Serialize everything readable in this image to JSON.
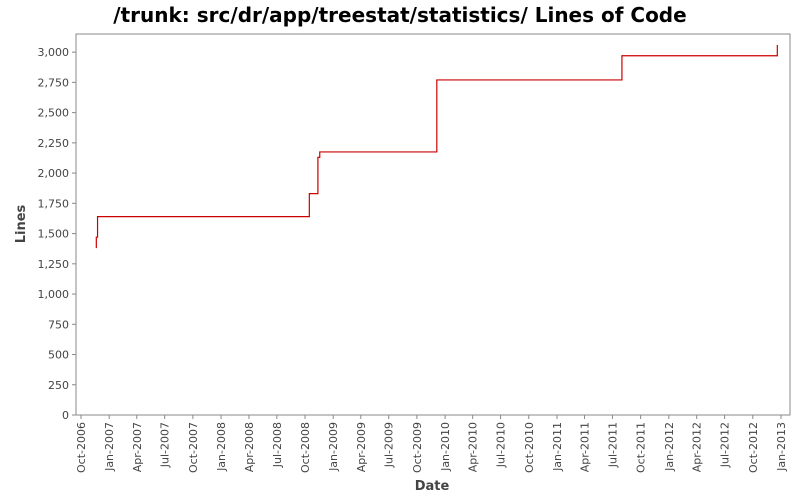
{
  "chart_data": {
    "type": "line",
    "title": "/trunk: src/dr/app/treestat/statistics/ Lines of Code",
    "xlabel": "Date",
    "ylabel": "Lines",
    "xlim": [
      "2006-10-01",
      "2013-01-01"
    ],
    "ylim": [
      0,
      3150
    ],
    "yticks": [
      0,
      250,
      500,
      750,
      1000,
      1250,
      1500,
      1750,
      2000,
      2250,
      2500,
      2750,
      3000
    ],
    "ytick_labels": [
      "0",
      "250",
      "500",
      "750",
      "1,000",
      "1,250",
      "1,500",
      "1,750",
      "2,000",
      "2,250",
      "2,500",
      "2,750",
      "3,000"
    ],
    "xticks": [
      "2006-10-01",
      "2007-01-01",
      "2007-04-01",
      "2007-07-01",
      "2007-10-01",
      "2008-01-01",
      "2008-04-01",
      "2008-07-01",
      "2008-10-01",
      "2009-01-01",
      "2009-04-01",
      "2009-07-01",
      "2009-10-01",
      "2010-01-01",
      "2010-04-01",
      "2010-07-01",
      "2010-10-01",
      "2011-01-01",
      "2011-04-01",
      "2011-07-01",
      "2011-10-01",
      "2012-01-01",
      "2012-04-01",
      "2012-07-01",
      "2012-10-01",
      "2013-01-01"
    ],
    "xtick_labels": [
      "Oct-2006",
      "Jan-2007",
      "Apr-2007",
      "Jul-2007",
      "Oct-2007",
      "Jan-2008",
      "Apr-2008",
      "Jul-2008",
      "Oct-2008",
      "Jan-2009",
      "Apr-2009",
      "Jul-2009",
      "Oct-2009",
      "Jan-2010",
      "Apr-2010",
      "Jul-2010",
      "Oct-2010",
      "Jan-2011",
      "Apr-2011",
      "Jul-2011",
      "Oct-2011",
      "Jan-2012",
      "Apr-2012",
      "Jul-2012",
      "Oct-2012",
      "Jan-2013"
    ],
    "grid": false,
    "series": [
      {
        "color": "#cc0000",
        "points": [
          [
            "2006-11-20",
            1380
          ],
          [
            "2006-11-20",
            1470
          ],
          [
            "2006-11-24",
            1470
          ],
          [
            "2006-11-24",
            1640
          ],
          [
            "2008-10-15",
            1640
          ],
          [
            "2008-10-15",
            1830
          ],
          [
            "2008-11-12",
            1830
          ],
          [
            "2008-11-12",
            2130
          ],
          [
            "2008-11-18",
            2130
          ],
          [
            "2008-11-18",
            2175
          ],
          [
            "2009-12-05",
            2175
          ],
          [
            "2009-12-05",
            2770
          ],
          [
            "2011-08-01",
            2770
          ],
          [
            "2011-08-01",
            2970
          ],
          [
            "2012-12-20",
            2970
          ],
          [
            "2012-12-20",
            3060
          ]
        ]
      }
    ]
  }
}
